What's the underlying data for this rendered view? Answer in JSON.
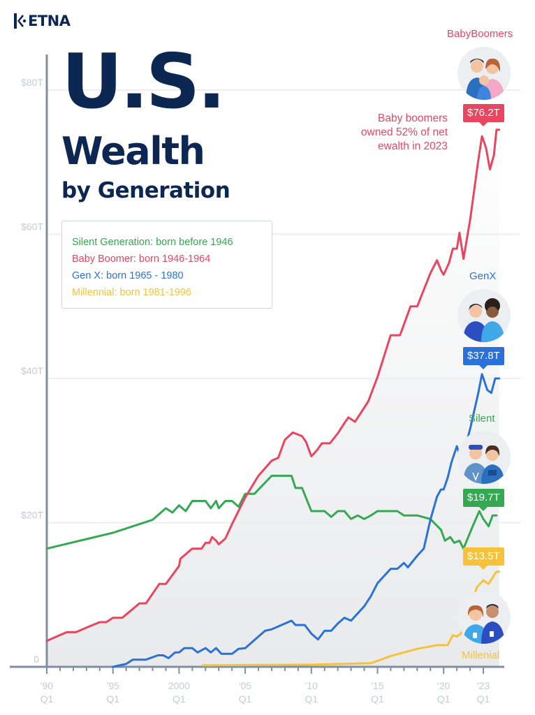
{
  "brand": {
    "logo_text": "ETNA"
  },
  "title": {
    "main": "U.S.",
    "sub1": "Wealth",
    "sub2": "by Generation"
  },
  "legend": [
    {
      "label": "Silent Generation: born before 1946",
      "color": "#34a853"
    },
    {
      "label": "Baby Boomer: born 1946-1964",
      "color": "#e8455f"
    },
    {
      "label": "Gen X: born 1965 - 1980",
      "color": "#2b72d8"
    },
    {
      "label": "Millennial: born 1981-1996",
      "color": "#f6c23a"
    }
  ],
  "annotation": [
    "Baby boomers",
    "owned 52% of net",
    "ewalth in 2023"
  ],
  "generations": {
    "boomers": {
      "label": "BabyBoomers",
      "value_label": "$76.2T",
      "color": "#e8455f"
    },
    "genx": {
      "label": "GenX",
      "value_label": "$37.8T",
      "color": "#2b72d8"
    },
    "silent": {
      "label": "Silent",
      "value_label": "$19.7T",
      "color": "#34a853"
    },
    "millennial": {
      "label": "Millenial",
      "value_label": "$13.5T",
      "color": "#f6c23a"
    }
  },
  "chart_data": {
    "type": "line",
    "xlim": [
      1990,
      2023.5
    ],
    "ylim": [
      0,
      80
    ],
    "ytick_values": [
      0,
      20,
      40,
      60,
      80
    ],
    "ytick_labels": [
      "0",
      "$20T",
      "$40T",
      "$60T",
      "$80T"
    ],
    "xticks": [
      {
        "value": 1990,
        "label": "'90",
        "sub": "Q1"
      },
      {
        "value": 1995,
        "label": "'95",
        "sub": "Q1"
      },
      {
        "value": 2000,
        "label": "2000",
        "sub": "Q1"
      },
      {
        "value": 2005,
        "label": "'05",
        "sub": "Q1"
      },
      {
        "value": 2010,
        "label": "'10",
        "sub": "Q1"
      },
      {
        "value": 2015,
        "label": "'15",
        "sub": "Q1"
      },
      {
        "value": 2020,
        "label": "'20",
        "sub": "Q1"
      },
      {
        "value": 2023,
        "label": "'23",
        "sub": "Q1"
      }
    ],
    "grid": true,
    "series": [
      {
        "name": "Silent Generation: born before 1946",
        "color": "#34a853",
        "points": [
          [
            1990,
            16.4
          ],
          [
            1995,
            18.6
          ],
          [
            1998,
            20.4
          ],
          [
            1999,
            22.0
          ],
          [
            1999.5,
            21.4
          ],
          [
            2000,
            22.4
          ],
          [
            2000.5,
            21.6
          ],
          [
            2001,
            23.0
          ],
          [
            2002,
            23.0
          ],
          [
            2002.4,
            22.0
          ],
          [
            2002.8,
            23.0
          ],
          [
            2003,
            22.0
          ],
          [
            2003.5,
            23.0
          ],
          [
            2004,
            23.0
          ],
          [
            2004.5,
            22.2
          ],
          [
            2005,
            24.0
          ],
          [
            2005.7,
            24.0
          ],
          [
            2007,
            26.5
          ],
          [
            2008.5,
            26.5
          ],
          [
            2008.8,
            24.8
          ],
          [
            2009.3,
            24.8
          ],
          [
            2010,
            21.6
          ],
          [
            2011,
            21.6
          ],
          [
            2011.5,
            20.8
          ],
          [
            2012,
            21.6
          ],
          [
            2012.5,
            21.6
          ],
          [
            2013,
            20.5
          ],
          [
            2013.5,
            21.0
          ],
          [
            2014,
            20.5
          ],
          [
            2014.5,
            21.0
          ],
          [
            2015,
            21.6
          ],
          [
            2016.5,
            21.6
          ],
          [
            2017,
            21.0
          ],
          [
            2018,
            21.0
          ],
          [
            2019,
            20.5
          ],
          [
            2019.8,
            19.0
          ],
          [
            2020.1,
            17.5
          ],
          [
            2020.5,
            18.0
          ],
          [
            2020.8,
            17.2
          ],
          [
            2021.2,
            17.5
          ],
          [
            2021.5,
            16.4
          ],
          [
            2022.2,
            19.5
          ],
          [
            2022.7,
            21.6
          ],
          [
            2023,
            20.5
          ],
          [
            2023.4,
            19.5
          ],
          [
            2023.7,
            21.0
          ],
          [
            2024,
            21.0
          ]
        ]
      },
      {
        "name": "Baby Boomer: born 1946-1964",
        "color": "#e8455f",
        "points": [
          [
            1990,
            3.6
          ],
          [
            1991.5,
            4.8
          ],
          [
            1992.2,
            4.8
          ],
          [
            1993.2,
            5.6
          ],
          [
            1994,
            6.2
          ],
          [
            1994.5,
            6.2
          ],
          [
            1995,
            6.8
          ],
          [
            1995.7,
            6.8
          ],
          [
            1997,
            8.8
          ],
          [
            1997.5,
            8.8
          ],
          [
            1998.5,
            11.5
          ],
          [
            1999,
            11.5
          ],
          [
            2000,
            14.0
          ],
          [
            2000.1,
            15.0
          ],
          [
            2001,
            16.4
          ],
          [
            2001.7,
            16.4
          ],
          [
            2002,
            17.2
          ],
          [
            2002.3,
            17.2
          ],
          [
            2002.5,
            18.0
          ],
          [
            2002.8,
            17.5
          ],
          [
            2003,
            17.0
          ],
          [
            2003.5,
            17.8
          ],
          [
            2004,
            19.8
          ],
          [
            2005,
            23.5
          ],
          [
            2006,
            26.5
          ],
          [
            2007,
            28.6
          ],
          [
            2007.5,
            29.0
          ],
          [
            2008,
            31.5
          ],
          [
            2008.6,
            32.5
          ],
          [
            2009.3,
            32.0
          ],
          [
            2009.6,
            31.2
          ],
          [
            2010,
            29.2
          ],
          [
            2010.4,
            30.0
          ],
          [
            2010.8,
            31.0
          ],
          [
            2011.4,
            31.0
          ],
          [
            2012,
            32.4
          ],
          [
            2012.5,
            33.8
          ],
          [
            2012.8,
            34.6
          ],
          [
            2013.3,
            34.0
          ],
          [
            2013.8,
            35.4
          ],
          [
            2014.3,
            36.8
          ],
          [
            2015,
            40.2
          ],
          [
            2016,
            46.0
          ],
          [
            2016.7,
            46.0
          ],
          [
            2017.5,
            50.0
          ],
          [
            2018,
            50.0
          ],
          [
            2019,
            54.6
          ],
          [
            2019.5,
            56.4
          ],
          [
            2019.8,
            55.0
          ],
          [
            2020,
            54.4
          ],
          [
            2020.4,
            56.0
          ],
          [
            2020.7,
            58.0
          ],
          [
            2021,
            58.0
          ],
          [
            2021.2,
            60.2
          ],
          [
            2021.5,
            56.6
          ],
          [
            2022,
            62.0
          ],
          [
            2022.6,
            70.0
          ],
          [
            2022.9,
            73.6
          ],
          [
            2023.2,
            72.0
          ],
          [
            2023.5,
            69.0
          ],
          [
            2023.8,
            71.0
          ],
          [
            2024,
            74.5
          ],
          [
            2024.3,
            74.5
          ]
        ]
      },
      {
        "name": "Gen X: born 1965 - 1980",
        "color": "#2b72d8",
        "points": [
          [
            1995,
            0
          ],
          [
            1995.5,
            0.2
          ],
          [
            1996,
            0.4
          ],
          [
            1996.5,
            1.0
          ],
          [
            1997.5,
            1.0
          ],
          [
            1998.4,
            1.6
          ],
          [
            1998.8,
            1.6
          ],
          [
            1999.2,
            1.2
          ],
          [
            1999.7,
            2.0
          ],
          [
            2000,
            2.0
          ],
          [
            2000.4,
            2.6
          ],
          [
            2001,
            2.6
          ],
          [
            2001.4,
            2.0
          ],
          [
            2002,
            2.6
          ],
          [
            2002.4,
            2.0
          ],
          [
            2002.8,
            2.6
          ],
          [
            2003.2,
            1.8
          ],
          [
            2004,
            1.8
          ],
          [
            2004.5,
            2.5
          ],
          [
            2005,
            2.6
          ],
          [
            2005.5,
            3.4
          ],
          [
            2006,
            4.2
          ],
          [
            2006.5,
            5.0
          ],
          [
            2007,
            5.2
          ],
          [
            2008.5,
            6.4
          ],
          [
            2008.8,
            5.8
          ],
          [
            2009.5,
            5.8
          ],
          [
            2010,
            4.6
          ],
          [
            2010.5,
            3.8
          ],
          [
            2011,
            5.0
          ],
          [
            2011.5,
            5.0
          ],
          [
            2012,
            6.0
          ],
          [
            2012.5,
            6.8
          ],
          [
            2013,
            6.4
          ],
          [
            2014,
            8.4
          ],
          [
            2014.5,
            9.8
          ],
          [
            2015,
            11.6
          ],
          [
            2016,
            13.6
          ],
          [
            2016.5,
            13.6
          ],
          [
            2017,
            14.4
          ],
          [
            2017.3,
            13.8
          ],
          [
            2018,
            15.4
          ],
          [
            2018.5,
            16.4
          ],
          [
            2019,
            20.4
          ],
          [
            2019.5,
            23.6
          ],
          [
            2019.8,
            24.6
          ],
          [
            2020,
            24.6
          ],
          [
            2020.3,
            26.2
          ],
          [
            2020.6,
            28.4
          ],
          [
            2021,
            30.6
          ],
          [
            2021.3,
            29.0
          ],
          [
            2021.6,
            30.2
          ],
          [
            2022,
            33.0
          ],
          [
            2022.6,
            37.8
          ],
          [
            2022.9,
            40.6
          ],
          [
            2023.3,
            38.4
          ],
          [
            2023.6,
            38.0
          ],
          [
            2023.9,
            40.0
          ],
          [
            2024.3,
            40.0
          ]
        ]
      },
      {
        "name": "Millennial: born 1981-1996",
        "color": "#f6c23a",
        "points": [
          [
            2001.8,
            0.2
          ],
          [
            2010,
            0.3
          ],
          [
            2014.5,
            0.5
          ],
          [
            2016,
            1.5
          ],
          [
            2017,
            2.0
          ],
          [
            2018,
            2.5
          ],
          [
            2019.5,
            3.0
          ],
          [
            2020.3,
            3.0
          ],
          [
            2020.7,
            4.4
          ],
          [
            2021,
            4.2
          ],
          [
            2021.3,
            4.6
          ],
          [
            2022,
            7.6
          ],
          [
            2022.5,
            11.0
          ],
          [
            2023,
            12.0
          ],
          [
            2023.4,
            11.5
          ],
          [
            2023.7,
            12.4
          ],
          [
            2024,
            13.2
          ],
          [
            2024.3,
            13.2
          ]
        ]
      }
    ]
  }
}
